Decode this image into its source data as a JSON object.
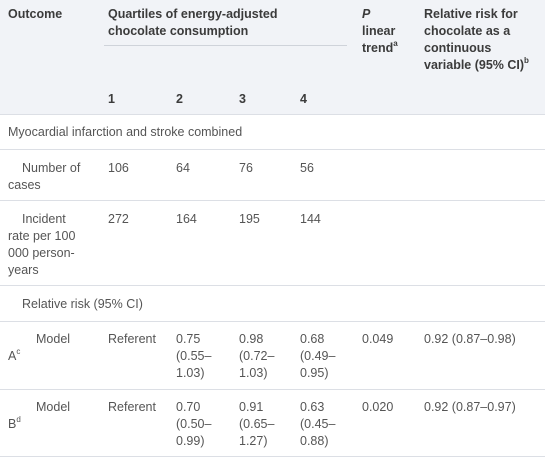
{
  "header": {
    "outcome": "Outcome",
    "quartiles_line1": "Quartiles of energy-adjusted",
    "quartiles_line2": "chocolate consumption",
    "p_letter": "P",
    "p_line2": "linear",
    "p_line3": "trend",
    "p_note": "a",
    "rr_line1": "Relative risk for",
    "rr_line2": "chocolate as a",
    "rr_line3": "continuous",
    "rr_line4": "variable (95% CI)",
    "rr_note": "b",
    "quartile_labels": [
      "1",
      "2",
      "3",
      "4"
    ]
  },
  "section_label": "Myocardial infarction and stroke combined",
  "cases_row": {
    "label_line1": "Number of",
    "label_line2": "cases",
    "values": [
      "106",
      "64",
      "76",
      "56"
    ]
  },
  "incidence_row": {
    "label_lines": [
      "Incident",
      "rate per 100",
      "000 person-",
      "years"
    ],
    "values": [
      "272",
      "164",
      "195",
      "144"
    ]
  },
  "rr_section_label": "Relative risk (95% CI)",
  "models": [
    {
      "label_word": "Model",
      "label_letter": "A",
      "note": "c",
      "referent": "Referent",
      "q2": [
        "0.75",
        "(0.55–",
        "1.03)"
      ],
      "q3": [
        "0.98",
        "(0.72–",
        "1.03)"
      ],
      "q4": [
        "0.68",
        "(0.49–",
        "0.95)"
      ],
      "p_trend": "0.049",
      "continuous": "0.92 (0.87–0.98)"
    },
    {
      "label_word": "Model",
      "label_letter": "B",
      "note": "d",
      "referent": "Referent",
      "q2": [
        "0.70",
        "(0.50–",
        "0.99)"
      ],
      "q3": [
        "0.91",
        "(0.65–",
        "1.27)"
      ],
      "q4": [
        "0.63",
        "(0.45–",
        "0.88)"
      ],
      "p_trend": "0.020",
      "continuous": "0.92 (0.87–0.97)"
    }
  ]
}
